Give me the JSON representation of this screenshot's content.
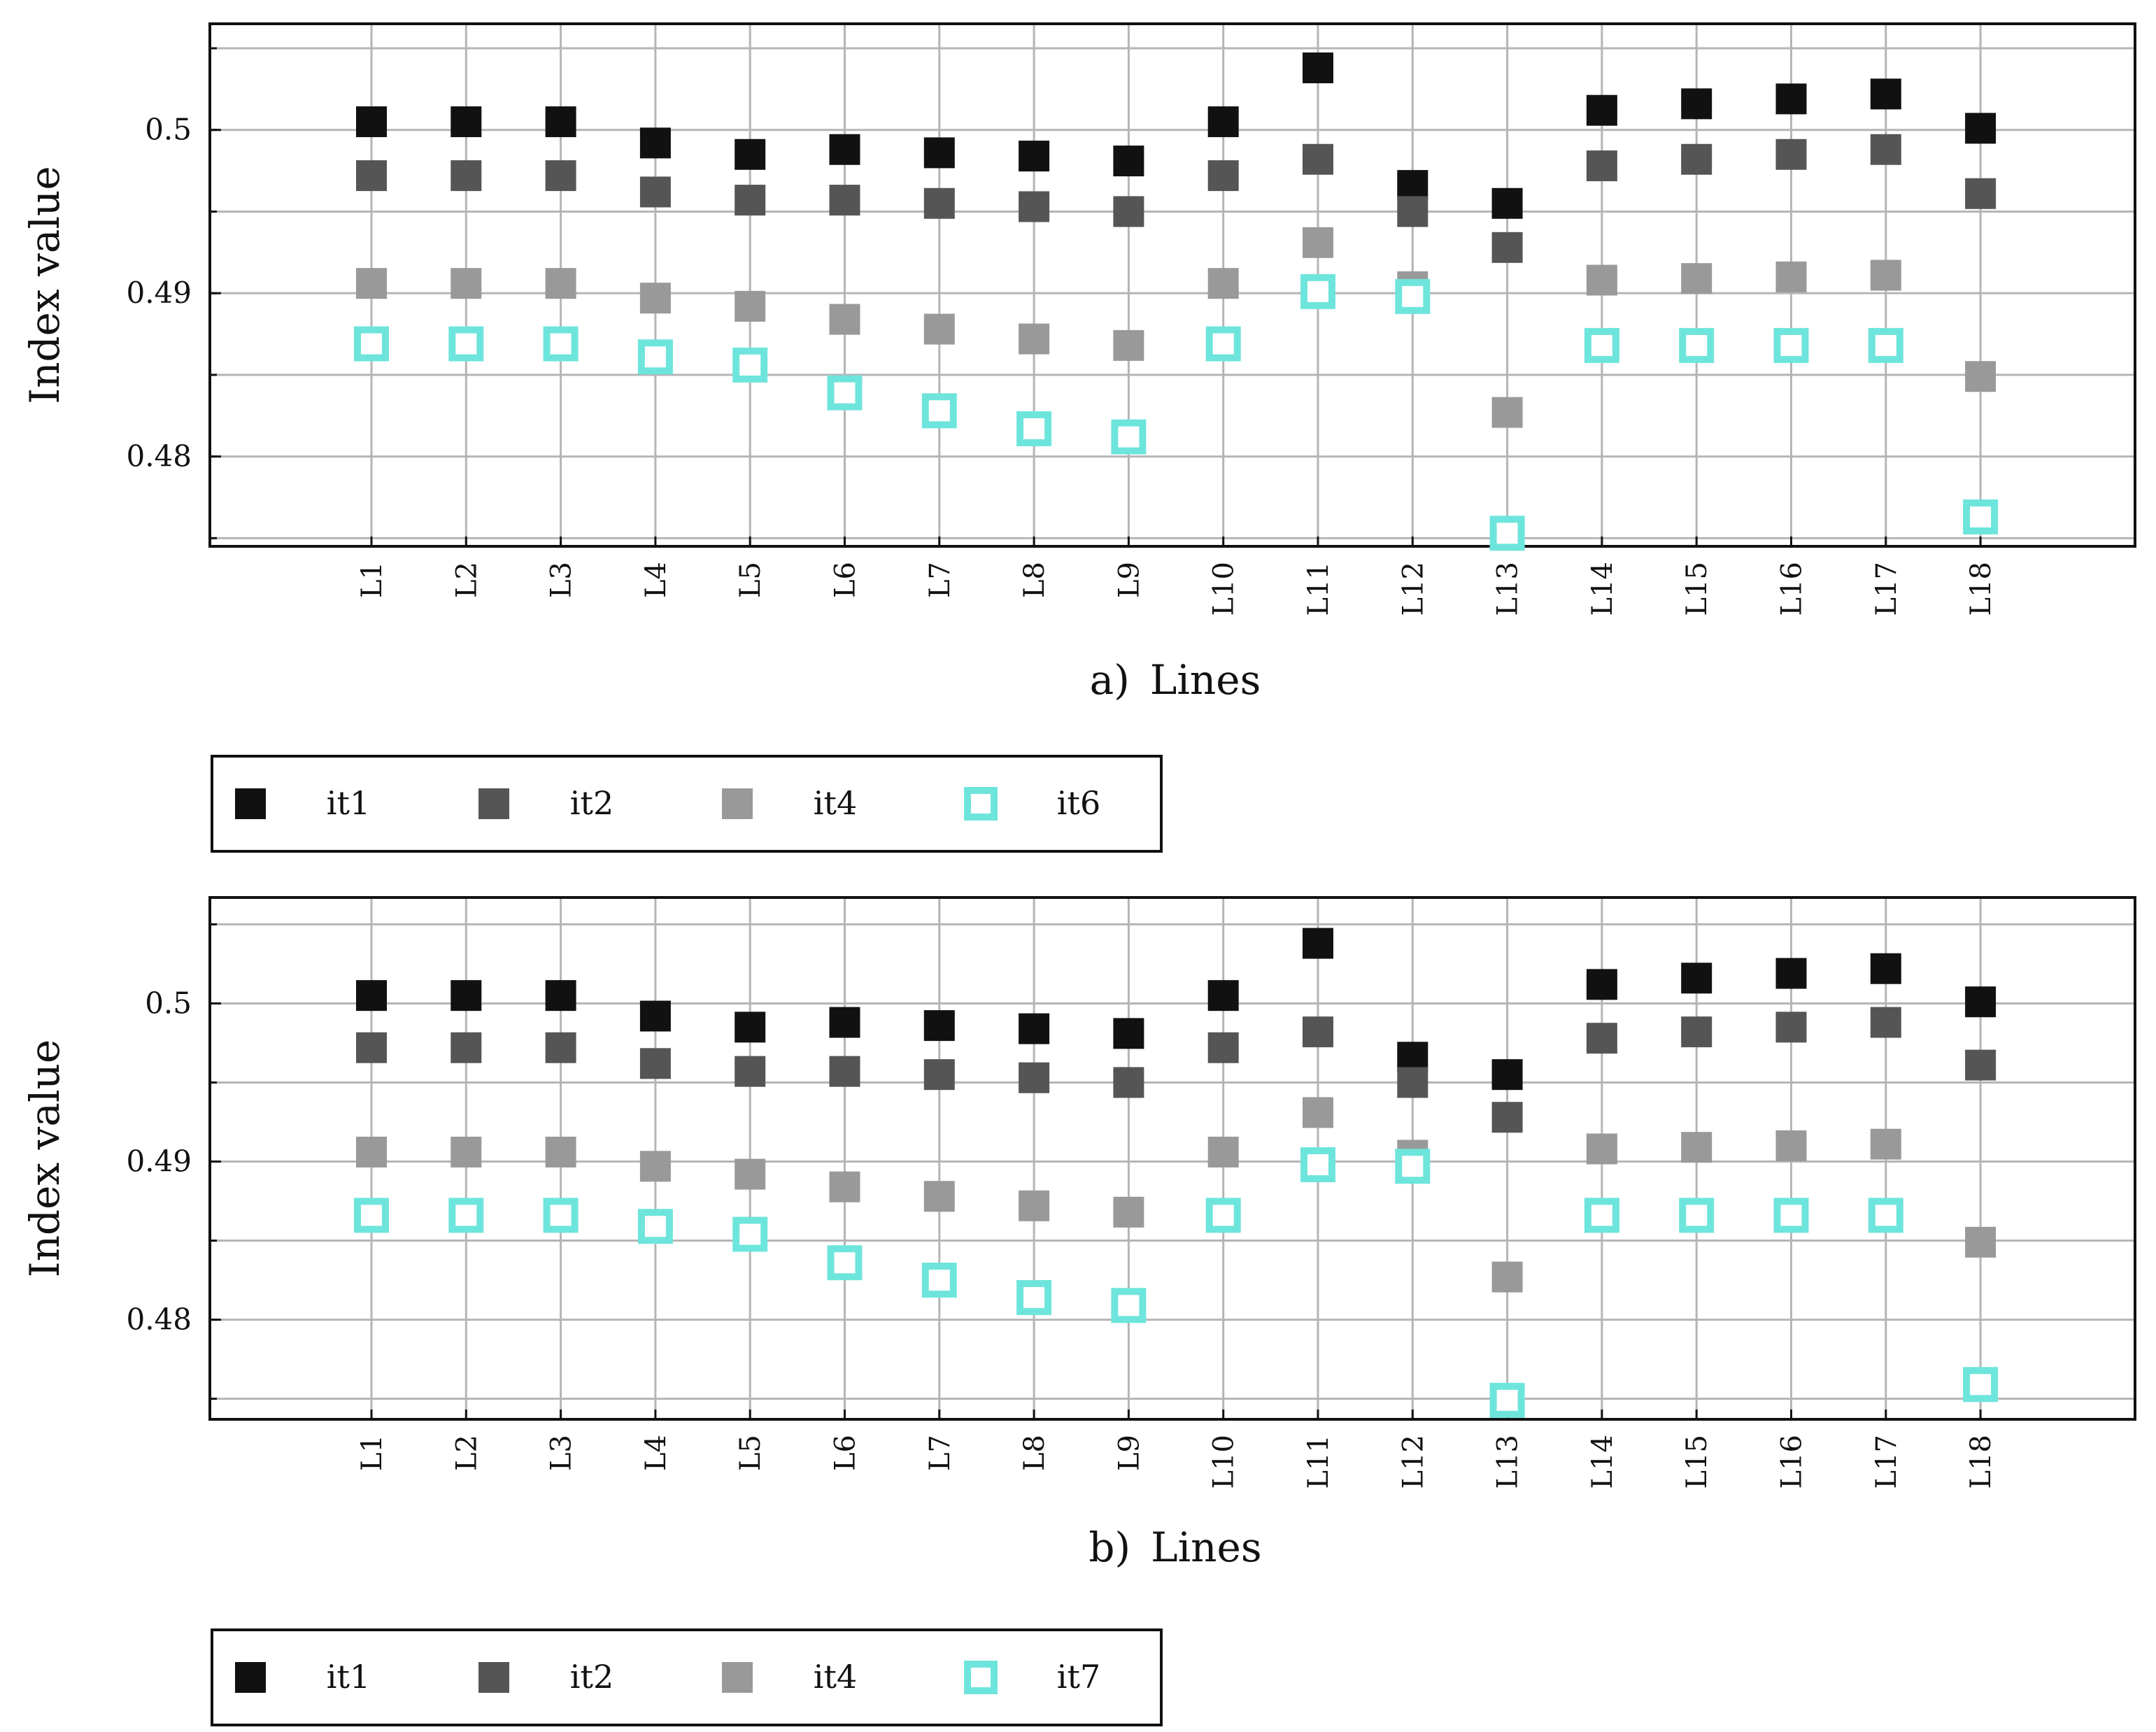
{
  "chart_data": [
    {
      "type": "scatter",
      "panel_label": "a)",
      "xlabel": "Lines",
      "ylabel": "Index value",
      "categories": [
        "L1",
        "L2",
        "L3",
        "L4",
        "L5",
        "L6",
        "L7",
        "L8",
        "L9",
        "L10",
        "L11",
        "L12",
        "L13",
        "L14",
        "L15",
        "L16",
        "L17",
        "L18"
      ],
      "ylim": [
        0.4745,
        0.5065
      ],
      "yticks": [
        0.48,
        0.49,
        0.5
      ],
      "ytick_labels": [
        "0.48",
        "0.49",
        "0.5"
      ],
      "grid": true,
      "legend_position": "below",
      "series": [
        {
          "name": "it1",
          "color": "#111111",
          "marker": "filled-square",
          "values": [
            0.5005,
            0.5005,
            0.5005,
            0.4992,
            0.4985,
            0.4988,
            0.4986,
            0.4984,
            0.4981,
            0.5005,
            0.5038,
            0.4966,
            0.4955,
            0.5012,
            0.5016,
            0.5019,
            0.5022,
            0.5001
          ]
        },
        {
          "name": "it2",
          "color": "#555555",
          "marker": "filled-square",
          "values": [
            0.4972,
            0.4972,
            0.4972,
            0.4962,
            0.4957,
            0.4957,
            0.4955,
            0.4953,
            0.495,
            0.4972,
            0.4982,
            0.495,
            0.4928,
            0.4978,
            0.4982,
            0.4985,
            0.4988,
            0.4961
          ]
        },
        {
          "name": "it4",
          "color": "#999999",
          "marker": "filled-square",
          "values": [
            0.4906,
            0.4906,
            0.4906,
            0.4897,
            0.4892,
            0.4884,
            0.4878,
            0.4872,
            0.4868,
            0.4906,
            0.4931,
            0.4904,
            0.4827,
            0.4908,
            0.4909,
            0.491,
            0.4911,
            0.4849
          ]
        },
        {
          "name": "it6",
          "color": "#6EE5DC",
          "marker": "open-square",
          "values": [
            0.4869,
            0.4869,
            0.4869,
            0.4861,
            0.4856,
            0.4839,
            0.4828,
            0.4817,
            0.4812,
            0.4869,
            0.4901,
            0.4898,
            0.4753,
            0.4868,
            0.4868,
            0.4868,
            0.4868,
            0.4763
          ]
        }
      ]
    },
    {
      "type": "scatter",
      "panel_label": "b)",
      "xlabel": "Lines",
      "ylabel": "Index value",
      "categories": [
        "L1",
        "L2",
        "L3",
        "L4",
        "L5",
        "L6",
        "L7",
        "L8",
        "L9",
        "L10",
        "L11",
        "L12",
        "L13",
        "L14",
        "L15",
        "L16",
        "L17",
        "L18"
      ],
      "ylim": [
        0.4737,
        0.5067
      ],
      "yticks": [
        0.48,
        0.49,
        0.5
      ],
      "ytick_labels": [
        "0.48",
        "0.49",
        "0.5"
      ],
      "grid": true,
      "legend_position": "below",
      "series": [
        {
          "name": "it1",
          "color": "#111111",
          "marker": "filled-square",
          "values": [
            0.5005,
            0.5005,
            0.5005,
            0.4992,
            0.4985,
            0.4988,
            0.4986,
            0.4984,
            0.4981,
            0.5005,
            0.5038,
            0.4966,
            0.4955,
            0.5012,
            0.5016,
            0.5019,
            0.5022,
            0.5001
          ]
        },
        {
          "name": "it2",
          "color": "#555555",
          "marker": "filled-square",
          "values": [
            0.4972,
            0.4972,
            0.4972,
            0.4962,
            0.4957,
            0.4957,
            0.4955,
            0.4953,
            0.495,
            0.4972,
            0.4982,
            0.495,
            0.4928,
            0.4978,
            0.4982,
            0.4985,
            0.4988,
            0.4961
          ]
        },
        {
          "name": "it4",
          "color": "#999999",
          "marker": "filled-square",
          "values": [
            0.4906,
            0.4906,
            0.4906,
            0.4897,
            0.4892,
            0.4884,
            0.4878,
            0.4872,
            0.4868,
            0.4906,
            0.4931,
            0.4904,
            0.4827,
            0.4908,
            0.4909,
            0.491,
            0.4911,
            0.4849
          ]
        },
        {
          "name": "it7",
          "color": "#6EE5DC",
          "marker": "open-square",
          "values": [
            0.4866,
            0.4866,
            0.4866,
            0.4859,
            0.4854,
            0.4836,
            0.4825,
            0.4814,
            0.4809,
            0.4866,
            0.4898,
            0.4897,
            0.4749,
            0.4866,
            0.4866,
            0.4866,
            0.4866,
            0.4759
          ]
        }
      ]
    }
  ]
}
